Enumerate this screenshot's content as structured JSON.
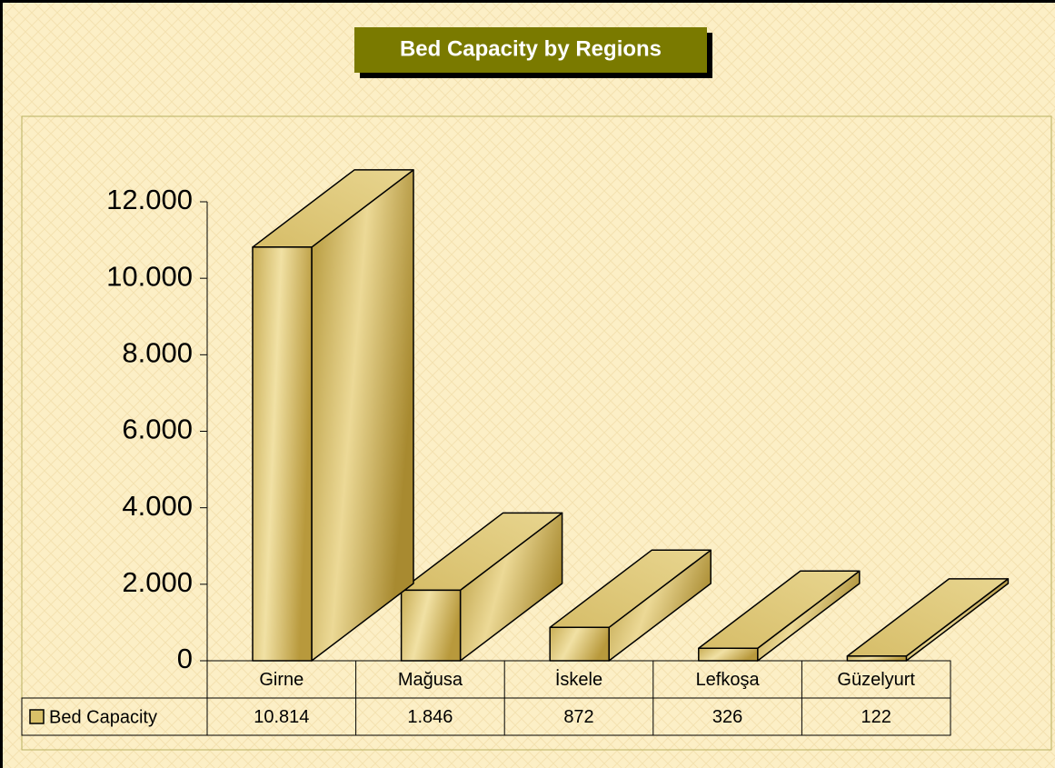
{
  "chart_data": {
    "type": "bar3d",
    "title": "Bed Capacity by Regions",
    "categories": [
      "Girne",
      "Mağusa",
      "İskele",
      "Lefkoşa",
      "Güzelyurt"
    ],
    "series": [
      {
        "name": "Bed Capacity",
        "color": "#d9c068",
        "values": [
          10814,
          1846,
          872,
          326,
          122
        ],
        "value_labels": [
          "10.814",
          "1.846",
          "872",
          "326",
          "122"
        ]
      }
    ],
    "ylim": [
      0,
      12000
    ],
    "yticks": [
      0,
      {
        "value": 2000,
        "label": "2.000"
      },
      {
        "value": 4000,
        "label": "4.000"
      },
      {
        "value": 6000,
        "label": "6.000"
      },
      {
        "value": 8000,
        "label": "8.000"
      },
      {
        "value": 10000,
        "label": "10.000"
      },
      {
        "value": 12000,
        "label": "12.000"
      }
    ],
    "data_table": true
  }
}
